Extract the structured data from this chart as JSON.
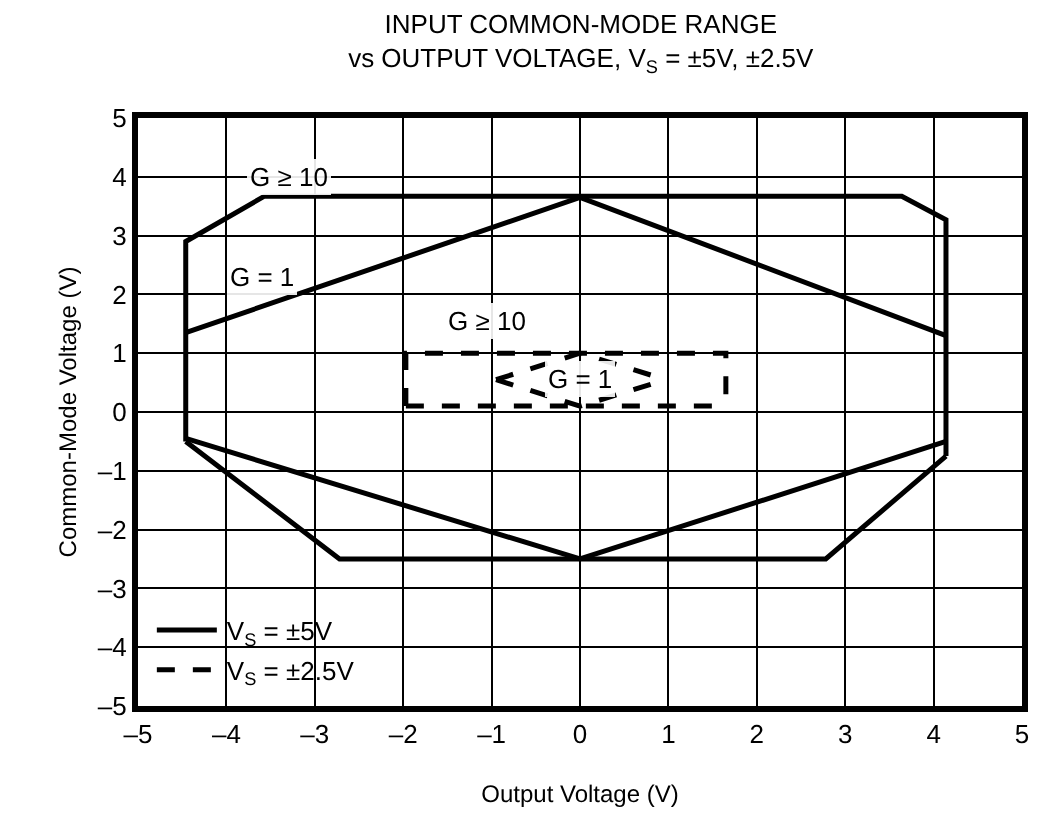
{
  "chart_data": {
    "type": "line",
    "title": "INPUT COMMON-MODE RANGE\nvs OUTPUT VOLTAGE, V$_{S}$ = ±5V, ±2.5V",
    "xlabel": "Output Voltage (V)",
    "ylabel": "Common-Mode Voltage (V)",
    "xlim": [
      -5,
      5
    ],
    "xticks": [
      {
        "value": -5,
        "label": "–5"
      },
      {
        "value": -4,
        "label": "–4"
      },
      {
        "value": -3,
        "label": "–3"
      },
      {
        "value": -2,
        "label": "–2"
      },
      {
        "value": -1,
        "label": "–1"
      },
      0,
      1,
      2,
      3,
      4,
      5
    ],
    "ylim": [
      -5,
      5
    ],
    "yticks": [
      {
        "value": -5,
        "label": "–5"
      },
      {
        "value": -4,
        "label": "–4"
      },
      {
        "value": -3,
        "label": "–3"
      },
      {
        "value": -2,
        "label": "–2"
      },
      {
        "value": -1,
        "label": "–1"
      },
      0,
      1,
      2,
      3,
      4,
      5
    ],
    "grid": true,
    "legend": "bottom left",
    "marker": "none",
    "series": [
      {
        "name": "V$_{S}$ = ±5V",
        "color": "#000000",
        "line_style": "solid",
        "x": [
          -4.46,
          -4.46,
          -3.57,
          3.64,
          4.14,
          4.14
        ],
        "values": [
          -0.5,
          2.9,
          3.67,
          3.67,
          3.27,
          -0.75
        ]
      },
      {
        "color": "#000000",
        "line_style": "solid",
        "x": [
          -4.46,
          -2.72,
          2.78,
          4.14
        ],
        "values": [
          -0.5,
          -2.5,
          -2.5,
          -0.75
        ]
      },
      {
        "color": "#000000",
        "line_style": "solid",
        "x": [
          -4.46,
          0,
          4.14
        ],
        "values": [
          1.35,
          3.65,
          1.3
        ]
      },
      {
        "color": "#000000",
        "line_style": "solid",
        "x": [
          -4.46,
          0,
          4.14
        ],
        "values": [
          -0.45,
          -2.5,
          -0.5
        ]
      },
      {
        "name": "V$_{S}$ = ±2.5V",
        "color": "#000000",
        "line_style": "dashed",
        "x": [
          -1.97,
          -1.97,
          1.65,
          1.65
        ],
        "values": [
          0.1,
          1.0,
          1.0,
          0.1
        ]
      },
      {
        "color": "#000000",
        "line_style": "dashed",
        "x": [
          -1.97,
          1.65
        ],
        "values": [
          0.1,
          0.1
        ]
      },
      {
        "color": "#000000",
        "line_style": "dashed",
        "x": [
          -0.95,
          0,
          0.97
        ],
        "values": [
          0.55,
          1.0,
          0.55
        ]
      },
      {
        "color": "#000000",
        "line_style": "dashed",
        "x": [
          -0.95,
          0,
          0.97
        ],
        "values": [
          0.55,
          0.1,
          0.55
        ]
      }
    ],
    "annotations": [
      {
        "text": "G ≥ 10",
        "x": -3.3,
        "y": 4
      },
      {
        "text": "G = 1",
        "x": -3.6,
        "y": 2.3
      },
      {
        "text": "G ≥ 10",
        "x": -1.05,
        "y": 1.55
      },
      {
        "text": "G = 1",
        "x": 0,
        "y": 0.55
      }
    ]
  }
}
